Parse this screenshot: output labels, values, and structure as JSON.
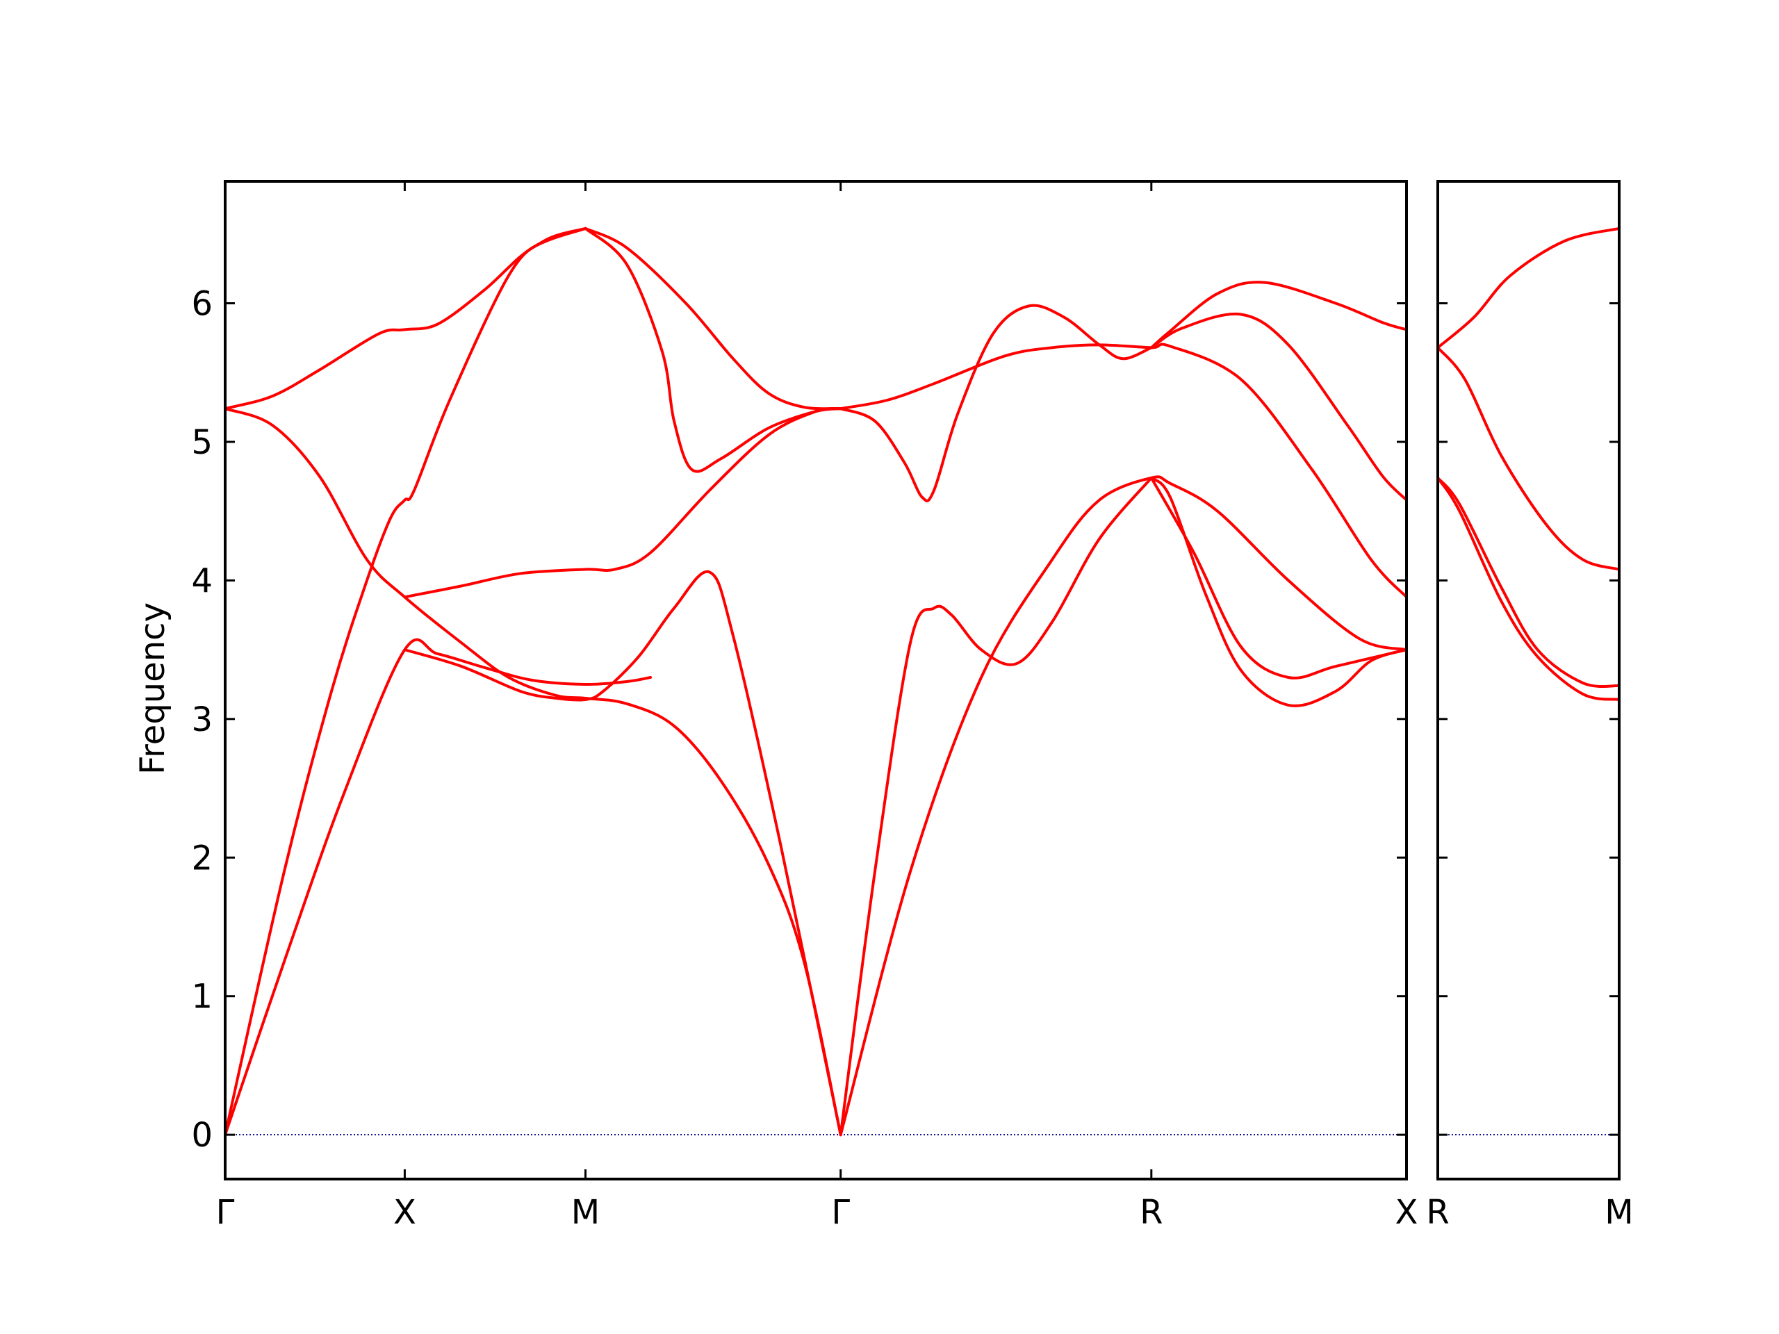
{
  "chart_data": {
    "type": "line",
    "ylabel": "Frequency",
    "ylim": [
      -0.32,
      6.88
    ],
    "yticks": [
      0,
      1,
      2,
      3,
      4,
      5,
      6
    ],
    "ytick_labels": [
      "0",
      "1",
      "2",
      "3",
      "4",
      "5",
      "6"
    ],
    "line_color": "#ff0000",
    "zero_line_color": "#00008b",
    "panels": [
      {
        "xlim": [
          0,
          1
        ],
        "xticks": [
          0,
          0.152,
          0.305,
          0.521,
          0.784,
          1
        ],
        "xtick_labels": [
          "Γ",
          "X",
          "M",
          "Γ",
          "R",
          "X"
        ],
        "series": [
          [
            [
              0,
              0
            ],
            [
              0.05,
              1.9
            ],
            [
              0.09,
              3.2
            ],
            [
              0.12,
              4.0
            ],
            [
              0.14,
              4.45
            ],
            [
              0.152,
              4.58
            ],
            [
              0.16,
              4.65
            ],
            [
              0.19,
              5.3
            ],
            [
              0.24,
              6.2
            ],
            [
              0.27,
              6.45
            ],
            [
              0.305,
              6.54
            ]
          ],
          [
            [
              0,
              0
            ],
            [
              0.05,
              1.25
            ],
            [
              0.1,
              2.45
            ],
            [
              0.152,
              3.5
            ],
            [
              0.18,
              3.47
            ],
            [
              0.22,
              3.37
            ],
            [
              0.26,
              3.28
            ],
            [
              0.305,
              3.25
            ],
            [
              0.34,
              3.27
            ],
            [
              0.36,
              3.3
            ]
          ],
          [
            [
              0,
              5.24
            ],
            [
              0.04,
              5.12
            ],
            [
              0.08,
              4.75
            ],
            [
              0.12,
              4.15
            ],
            [
              0.152,
              3.88
            ],
            [
              0.2,
              3.55
            ],
            [
              0.24,
              3.3
            ],
            [
              0.28,
              3.17
            ],
            [
              0.305,
              3.15
            ],
            [
              0.34,
              3.11
            ],
            [
              0.38,
              2.95
            ],
            [
              0.42,
              2.55
            ],
            [
              0.46,
              1.95
            ],
            [
              0.49,
              1.25
            ],
            [
              0.521,
              0
            ]
          ],
          [
            [
              0,
              5.24
            ],
            [
              0.04,
              5.33
            ],
            [
              0.08,
              5.52
            ],
            [
              0.13,
              5.78
            ],
            [
              0.152,
              5.81
            ],
            [
              0.18,
              5.85
            ],
            [
              0.22,
              6.1
            ],
            [
              0.26,
              6.4
            ],
            [
              0.305,
              6.54
            ]
          ],
          [
            [
              0.152,
              3.88
            ],
            [
              0.2,
              3.96
            ],
            [
              0.25,
              4.05
            ],
            [
              0.305,
              4.08
            ],
            [
              0.33,
              4.08
            ],
            [
              0.36,
              4.2
            ],
            [
              0.41,
              4.65
            ],
            [
              0.46,
              5.05
            ],
            [
              0.5,
              5.22
            ],
            [
              0.521,
              5.24
            ]
          ],
          [
            [
              0.152,
              3.5
            ],
            [
              0.2,
              3.38
            ],
            [
              0.25,
              3.2
            ],
            [
              0.28,
              3.15
            ],
            [
              0.305,
              3.14
            ],
            [
              0.32,
              3.2
            ],
            [
              0.35,
              3.45
            ],
            [
              0.38,
              3.8
            ],
            [
              0.41,
              4.06
            ],
            [
              0.43,
              3.6
            ],
            [
              0.47,
              2.1
            ],
            [
              0.521,
              0
            ]
          ],
          [
            [
              0.305,
              6.54
            ],
            [
              0.34,
              6.28
            ],
            [
              0.37,
              5.65
            ],
            [
              0.38,
              5.15
            ],
            [
              0.395,
              4.8
            ],
            [
              0.42,
              4.88
            ],
            [
              0.46,
              5.1
            ],
            [
              0.5,
              5.22
            ],
            [
              0.521,
              5.24
            ]
          ],
          [
            [
              0.305,
              6.54
            ],
            [
              0.34,
              6.4
            ],
            [
              0.39,
              6.0
            ],
            [
              0.43,
              5.6
            ],
            [
              0.46,
              5.35
            ],
            [
              0.49,
              5.25
            ],
            [
              0.521,
              5.24
            ]
          ],
          [
            [
              0.521,
              5.24
            ],
            [
              0.56,
              5.3
            ],
            [
              0.6,
              5.42
            ],
            [
              0.66,
              5.62
            ],
            [
              0.7,
              5.68
            ],
            [
              0.74,
              5.7
            ],
            [
              0.784,
              5.68
            ],
            [
              0.8,
              5.69
            ],
            [
              0.86,
              5.45
            ],
            [
              0.92,
              4.8
            ],
            [
              0.97,
              4.15
            ],
            [
              1,
              3.88
            ]
          ],
          [
            [
              0.521,
              5.24
            ],
            [
              0.55,
              5.15
            ],
            [
              0.575,
              4.85
            ],
            [
              0.59,
              4.6
            ],
            [
              0.6,
              4.65
            ],
            [
              0.62,
              5.2
            ],
            [
              0.65,
              5.78
            ],
            [
              0.68,
              5.98
            ],
            [
              0.71,
              5.9
            ],
            [
              0.74,
              5.7
            ],
            [
              0.76,
              5.6
            ],
            [
              0.784,
              5.68
            ]
          ],
          [
            [
              0.521,
              0
            ],
            [
              0.55,
              1.9
            ],
            [
              0.58,
              3.55
            ],
            [
              0.6,
              3.8
            ],
            [
              0.615,
              3.75
            ],
            [
              0.64,
              3.5
            ],
            [
              0.67,
              3.4
            ],
            [
              0.7,
              3.7
            ],
            [
              0.74,
              4.3
            ],
            [
              0.784,
              4.74
            ]
          ],
          [
            [
              0.521,
              0
            ],
            [
              0.58,
              1.9
            ],
            [
              0.64,
              3.3
            ],
            [
              0.7,
              4.15
            ],
            [
              0.74,
              4.58
            ],
            [
              0.784,
              4.74
            ],
            [
              0.8,
              4.7
            ],
            [
              0.84,
              4.5
            ],
            [
              0.9,
              4.0
            ],
            [
              0.96,
              3.58
            ],
            [
              1,
              3.5
            ]
          ],
          [
            [
              0.784,
              5.68
            ],
            [
              0.8,
              5.8
            ],
            [
              0.84,
              6.07
            ],
            [
              0.88,
              6.15
            ],
            [
              0.94,
              6.0
            ],
            [
              0.98,
              5.86
            ],
            [
              1,
              5.81
            ]
          ],
          [
            [
              0.784,
              5.68
            ],
            [
              0.81,
              5.82
            ],
            [
              0.86,
              5.92
            ],
            [
              0.9,
              5.7
            ],
            [
              0.95,
              5.12
            ],
            [
              0.98,
              4.75
            ],
            [
              1,
              4.58
            ]
          ],
          [
            [
              0.784,
              4.74
            ],
            [
              0.82,
              4.2
            ],
            [
              0.86,
              3.52
            ],
            [
              0.9,
              3.3
            ],
            [
              0.94,
              3.38
            ],
            [
              1,
              3.5
            ]
          ],
          [
            [
              0.784,
              4.74
            ],
            [
              0.8,
              4.6
            ],
            [
              0.83,
              3.9
            ],
            [
              0.86,
              3.35
            ],
            [
              0.9,
              3.1
            ],
            [
              0.94,
              3.2
            ],
            [
              0.97,
              3.42
            ],
            [
              1,
              3.5
            ]
          ]
        ]
      },
      {
        "xlim": [
          0,
          1
        ],
        "xticks": [
          0,
          1
        ],
        "xtick_labels": [
          "R",
          "M"
        ],
        "series": [
          [
            [
              0,
              5.68
            ],
            [
              0.2,
              5.9
            ],
            [
              0.4,
              6.2
            ],
            [
              0.7,
              6.45
            ],
            [
              1,
              6.54
            ]
          ],
          [
            [
              0,
              5.68
            ],
            [
              0.15,
              5.45
            ],
            [
              0.35,
              4.9
            ],
            [
              0.6,
              4.4
            ],
            [
              0.8,
              4.15
            ],
            [
              1,
              4.08
            ]
          ],
          [
            [
              0,
              4.74
            ],
            [
              0.12,
              4.55
            ],
            [
              0.35,
              3.95
            ],
            [
              0.55,
              3.5
            ],
            [
              0.8,
              3.26
            ],
            [
              1,
              3.24
            ]
          ],
          [
            [
              0,
              4.74
            ],
            [
              0.12,
              4.5
            ],
            [
              0.35,
              3.85
            ],
            [
              0.55,
              3.45
            ],
            [
              0.8,
              3.18
            ],
            [
              1,
              3.14
            ]
          ]
        ]
      }
    ]
  }
}
